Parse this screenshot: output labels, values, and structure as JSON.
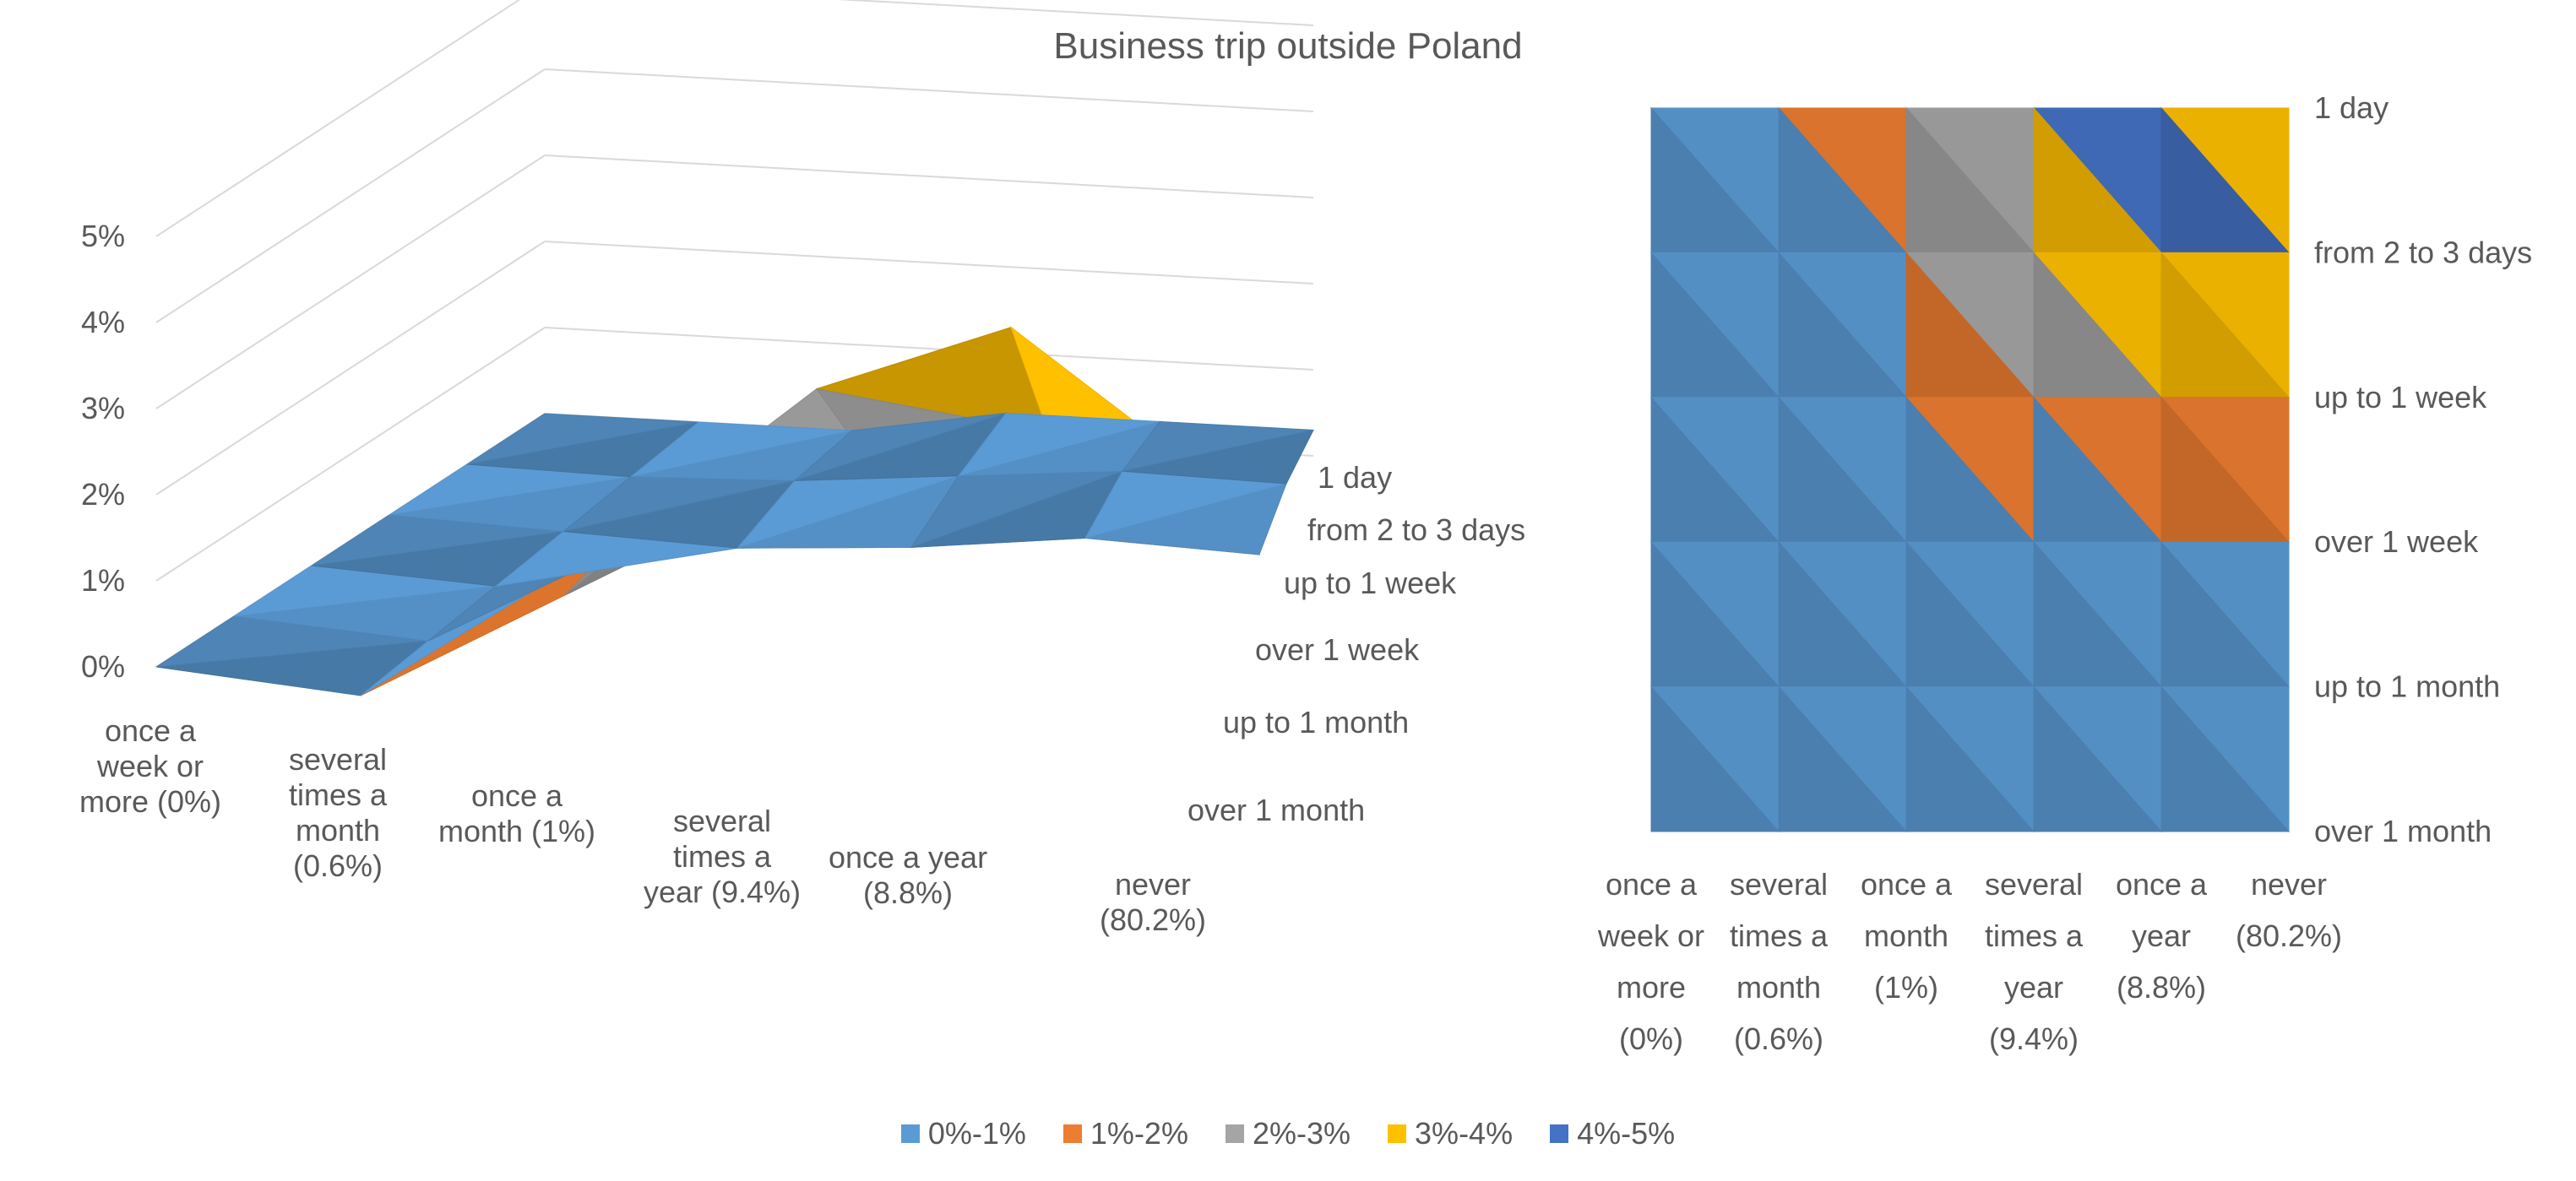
{
  "chart_data": {
    "type": "surface",
    "title": "Business trip outside Poland",
    "x_categories": [
      "once a week or more (0%)",
      "several times a month (0.6%)",
      "once a month (1%)",
      "several times a year (9.4%)",
      "once a year (8.8%)",
      "never (80.2%)"
    ],
    "y_categories": [
      "1 day",
      "from 2 to 3 days",
      "up to 1 week",
      "over 1 week",
      "up to 1 month",
      "over 1 month"
    ],
    "z_ticks": [
      "0%",
      "1%",
      "2%",
      "3%",
      "4%",
      "5%"
    ],
    "zlim": [
      0,
      5
    ],
    "values_percent": [
      [
        0.0,
        0.0,
        1.5,
        3.0,
        4.5,
        3.5
      ],
      [
        0.0,
        0.0,
        1.5,
        3.5,
        4.5,
        3.0
      ],
      [
        0.0,
        0.0,
        1.0,
        2.0,
        2.5,
        2.0
      ],
      [
        0.0,
        0.0,
        0.0,
        0.2,
        0.5,
        0.5
      ],
      [
        0.0,
        0.0,
        0.1,
        0.3,
        0.5,
        0.5
      ],
      [
        0.0,
        0.0,
        0.0,
        0.3,
        0.3,
        0.3
      ]
    ],
    "legend": [
      {
        "label": "0%-1%",
        "color": "#5B9BD5"
      },
      {
        "label": "1%-2%",
        "color": "#ED7D31"
      },
      {
        "label": "2%-3%",
        "color": "#A5A5A5"
      },
      {
        "label": "3%-4%",
        "color": "#FFC000"
      },
      {
        "label": "4%-5%",
        "color": "#4472C4"
      }
    ],
    "views": [
      "3d surface",
      "contour (top view)"
    ]
  },
  "left_x_tick_lines": [
    [
      "once a",
      "week or",
      "more (0%)"
    ],
    [
      "several",
      "times a",
      "month",
      "(0.6%)"
    ],
    [
      "once a",
      "month (1%)"
    ],
    [
      "several",
      "times a",
      "year (9.4%)"
    ],
    [
      "once a year",
      "(8.8%)"
    ],
    [
      "never",
      "(80.2%)"
    ]
  ],
  "right_x_tick_lines": [
    [
      "once a",
      "week or",
      "more",
      "(0%)"
    ],
    [
      "several",
      "times a",
      "month",
      "(0.6%)"
    ],
    [
      "once a",
      "month",
      "(1%)"
    ],
    [
      "several",
      "times a",
      "year",
      "(9.4%)"
    ],
    [
      "once a",
      "year",
      "(8.8%)"
    ],
    [
      "never",
      "(80.2%)"
    ]
  ]
}
